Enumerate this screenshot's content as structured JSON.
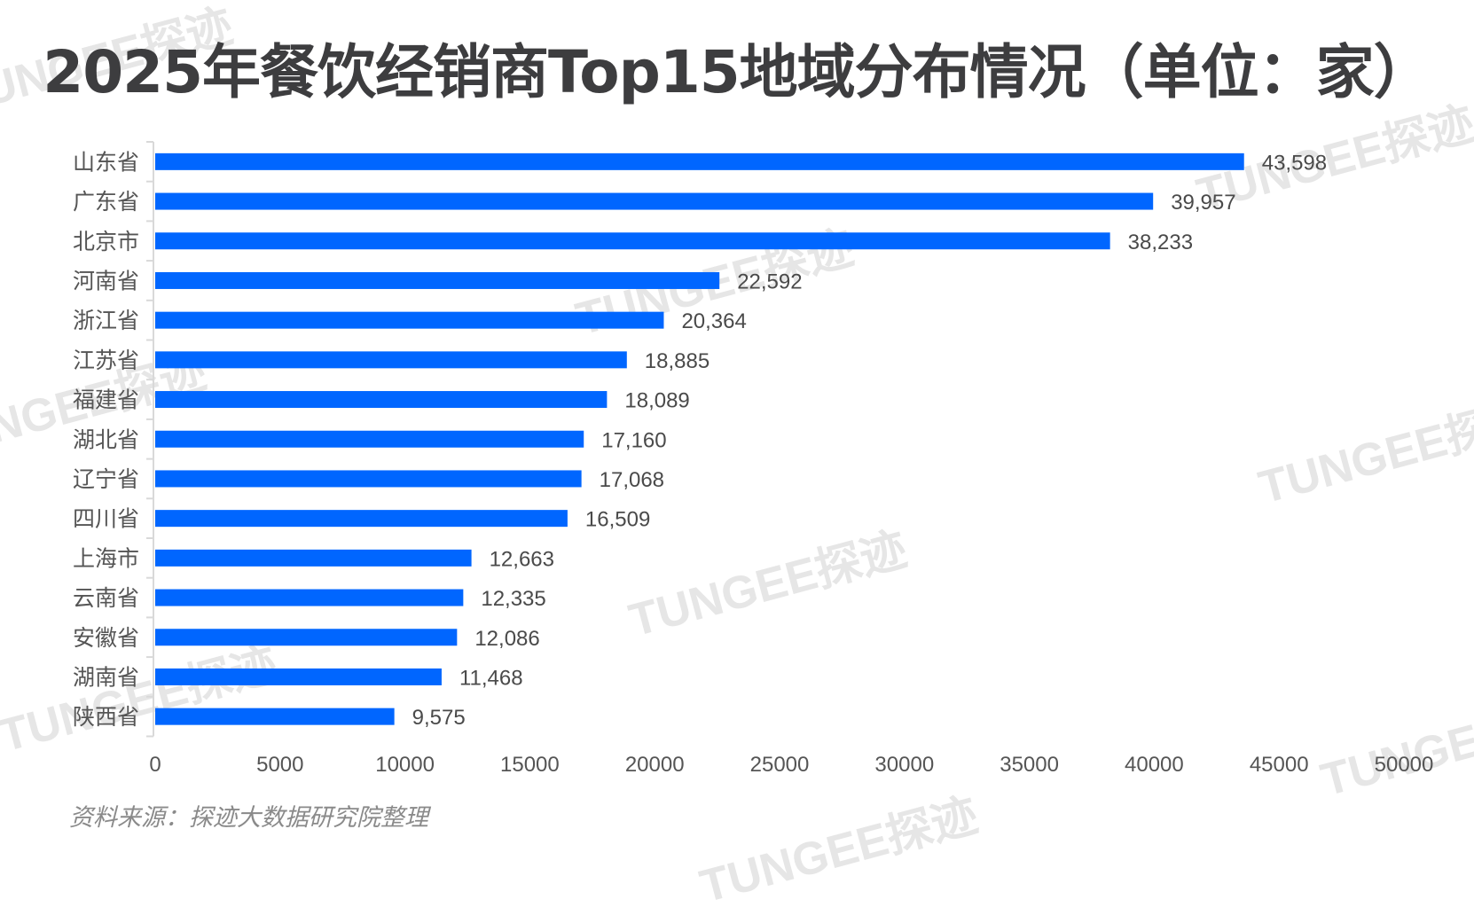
{
  "title": "2025年餐饮经销商Top15地域分布情况（单位：家）",
  "source": "资料来源：探迹大数据研究院整理",
  "watermark_text": "TUNGEE探迹",
  "colors": {
    "bar": "#0066ff",
    "title": "#3d3d3f",
    "axis_text": "#555555",
    "value_text": "#4a4a4a"
  },
  "chart_data": {
    "type": "bar",
    "orientation": "horizontal",
    "title": "2025年餐饮经销商Top15地域分布情况（单位：家）",
    "xlabel": "",
    "ylabel": "",
    "categories": [
      "山东省",
      "广东省",
      "北京市",
      "河南省",
      "浙江省",
      "江苏省",
      "福建省",
      "湖北省",
      "辽宁省",
      "四川省",
      "上海市",
      "云南省",
      "安徽省",
      "湖南省",
      "陕西省"
    ],
    "values": [
      43598,
      39957,
      38233,
      22592,
      20364,
      18885,
      18089,
      17160,
      17068,
      16509,
      12663,
      12335,
      12086,
      11468,
      9575
    ],
    "value_labels": [
      "43,598",
      "39,957",
      "38,233",
      "22,592",
      "20,364",
      "18,885",
      "18,089",
      "17,160",
      "17,068",
      "16,509",
      "12,663",
      "12,335",
      "12,086",
      "11,468",
      "9,575"
    ],
    "xlim": [
      0,
      50000
    ],
    "xticks": [
      "0",
      "5000",
      "10000",
      "15000",
      "20000",
      "25000",
      "30000",
      "35000",
      "40000",
      "45000",
      "50000"
    ],
    "grid": false,
    "legend": "none"
  }
}
